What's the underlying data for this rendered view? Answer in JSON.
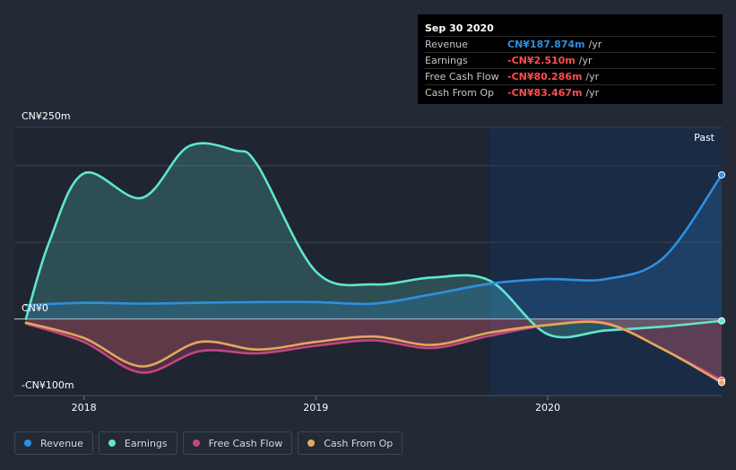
{
  "tooltip": {
    "date": "Sep 30 2020",
    "rows": [
      {
        "label": "Revenue",
        "value": "CN¥187.874m",
        "unit": "/yr",
        "color": "#2f8fe0"
      },
      {
        "label": "Earnings",
        "value": "-CN¥2.510m",
        "unit": "/yr",
        "color": "#ff4d4d"
      },
      {
        "label": "Free Cash Flow",
        "value": "-CN¥80.286m",
        "unit": "/yr",
        "color": "#ff4d4d"
      },
      {
        "label": "Cash From Op",
        "value": "-CN¥83.467m",
        "unit": "/yr",
        "color": "#ff4d4d"
      }
    ]
  },
  "legend": [
    {
      "label": "Revenue",
      "color": "#2f8fe0"
    },
    {
      "label": "Earnings",
      "color": "#5fe6cf"
    },
    {
      "label": "Free Cash Flow",
      "color": "#c4457f"
    },
    {
      "label": "Cash From Op",
      "color": "#e2a85c"
    }
  ],
  "chart_data": {
    "type": "line",
    "title": "",
    "ylabel": "",
    "xlabel": "",
    "y_tick_labels": {
      "top": "CN¥250m",
      "zero": "CN¥0",
      "bottom": "-CN¥100m"
    },
    "ylim": [
      -100,
      250
    ],
    "xlim": [
      2017.7,
      2020.75
    ],
    "x_ticks": [
      2018,
      2019,
      2020
    ],
    "x_tick_labels": [
      "2018",
      "2019",
      "2020"
    ],
    "past_label": "Past",
    "past_start": 2019.75,
    "series": [
      {
        "name": "Revenue",
        "color": "#2f8fe0",
        "x": [
          2017.75,
          2018.0,
          2018.25,
          2018.5,
          2018.75,
          2019.0,
          2019.25,
          2019.5,
          2019.75,
          2020.0,
          2020.25,
          2020.5,
          2020.75
        ],
        "values": [
          18,
          21,
          20,
          21,
          22,
          22,
          20,
          32,
          46,
          52,
          52,
          80,
          188
        ]
      },
      {
        "name": "Earnings",
        "color": "#5fe6cf",
        "x": [
          2017.75,
          2017.85,
          2018.0,
          2018.25,
          2018.45,
          2018.65,
          2018.75,
          2019.0,
          2019.25,
          2019.5,
          2019.75,
          2020.0,
          2020.25,
          2020.5,
          2020.75
        ],
        "values": [
          0,
          100,
          190,
          158,
          225,
          220,
          200,
          62,
          45,
          54,
          50,
          -20,
          -15,
          -10,
          -2.5
        ]
      },
      {
        "name": "Free Cash Flow",
        "color": "#c4457f",
        "x": [
          2017.75,
          2018.0,
          2018.25,
          2018.5,
          2018.75,
          2019.0,
          2019.25,
          2019.5,
          2019.75,
          2020.0,
          2020.25,
          2020.5,
          2020.75
        ],
        "values": [
          -6,
          -30,
          -70,
          -42,
          -45,
          -35,
          -28,
          -38,
          -22,
          -8,
          -5,
          -40,
          -80
        ]
      },
      {
        "name": "Cash From Op",
        "color": "#e2a85c",
        "x": [
          2017.75,
          2018.0,
          2018.25,
          2018.5,
          2018.75,
          2019.0,
          2019.25,
          2019.5,
          2019.75,
          2020.0,
          2020.25,
          2020.5,
          2020.75
        ],
        "values": [
          -5,
          -25,
          -62,
          -30,
          -40,
          -30,
          -23,
          -34,
          -18,
          -8,
          -6,
          -40,
          -83
        ]
      }
    ]
  }
}
